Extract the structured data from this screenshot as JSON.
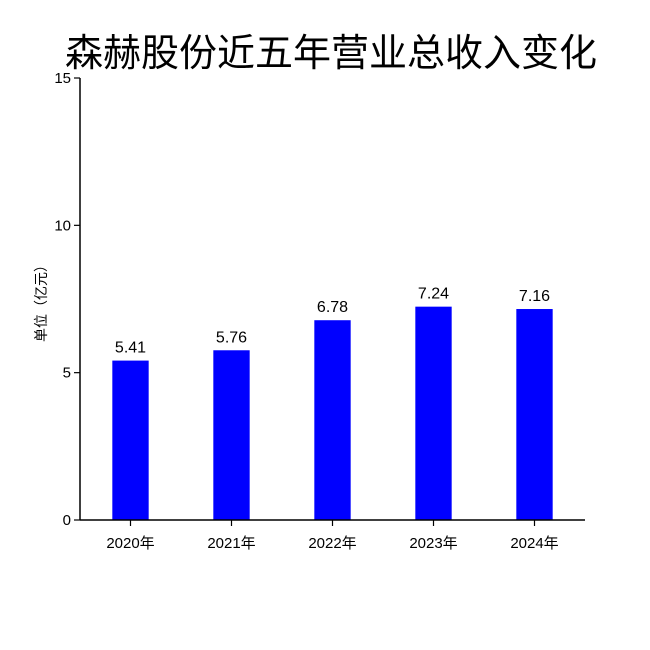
{
  "chart_data": {
    "type": "bar",
    "title": "森赫股份近五年营业总收入变化",
    "xlabel": "",
    "ylabel": "单位（亿元）",
    "categories": [
      "2020年",
      "2021年",
      "2022年",
      "2023年",
      "2024年"
    ],
    "values": [
      5.41,
      5.76,
      6.78,
      7.24,
      7.16
    ],
    "value_labels": [
      "5.41",
      "5.76",
      "6.78",
      "7.24",
      "7.16"
    ],
    "ylim": [
      0,
      15
    ],
    "yticks": [
      0,
      5,
      10,
      15
    ],
    "ytick_labels": [
      "0",
      "5",
      "10",
      "15"
    ],
    "grid": false,
    "legend": "none",
    "bar_color": "#0000ff"
  }
}
